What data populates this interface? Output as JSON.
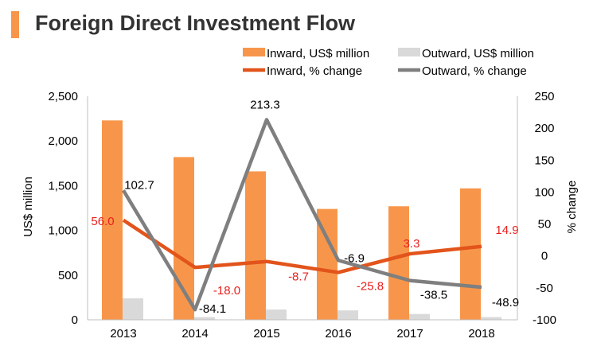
{
  "chart_data": {
    "type": "bar",
    "title": "Foreign Direct Investment Flow",
    "categories": [
      "2013",
      "2014",
      "2015",
      "2016",
      "2017",
      "2018"
    ],
    "ylabel": "US$ million",
    "y2label": "% change",
    "ylim": [
      0,
      2500
    ],
    "y2lim": [
      -100,
      250
    ],
    "y_ticks": [
      "0",
      "500",
      "1,000",
      "1,500",
      "2,000",
      "2,500"
    ],
    "y2_ticks": [
      "-100",
      "-50",
      "0",
      "50",
      "100",
      "150",
      "200",
      "250"
    ],
    "y_tick_values": [
      0,
      500,
      1000,
      1500,
      2000,
      2500
    ],
    "y2_tick_values": [
      -100,
      -50,
      0,
      50,
      100,
      150,
      200,
      250
    ],
    "legend_placement": "top",
    "grid": false,
    "series": [
      {
        "name": "Inward, US$ million",
        "kind": "bar",
        "axis": "left",
        "color": "#f7964a",
        "values": [
          2230,
          1820,
          1660,
          1240,
          1270,
          1470
        ]
      },
      {
        "name": "Outward, US$ million",
        "kind": "bar",
        "axis": "left",
        "color": "#d9d9d9",
        "values": [
          240,
          30,
          115,
          105,
          65,
          30
        ]
      },
      {
        "name": "Inward, % change",
        "kind": "line",
        "axis": "right",
        "color": "#e2541b",
        "values": [
          56.0,
          -18.0,
          -8.7,
          -25.8,
          3.3,
          14.9
        ],
        "labels": [
          "56.0",
          "-18.0",
          "-8.7",
          "-25.8",
          "3.3",
          "14.9"
        ],
        "label_color": "#e8201e"
      },
      {
        "name": "Outward, % change",
        "kind": "line",
        "axis": "right",
        "color": "#7f7f7f",
        "values": [
          102.7,
          -84.1,
          213.3,
          -6.9,
          -38.5,
          -48.9
        ],
        "labels": [
          "102.7",
          "-84.1",
          "213.3",
          "-6.9",
          "-38.5",
          "-48.9"
        ],
        "label_color": "#000000"
      }
    ]
  }
}
